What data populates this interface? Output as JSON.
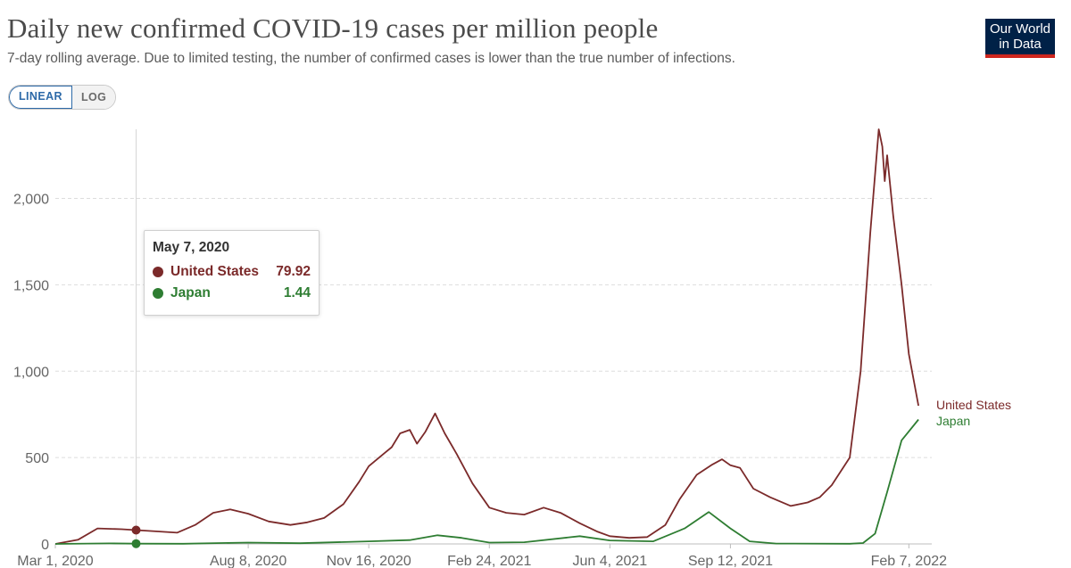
{
  "header": {
    "title": "Daily new confirmed COVID-19 cases per million people",
    "subtitle": "7-day rolling average. Due to limited testing, the number of confirmed cases is lower than the true number of infections.",
    "logo_line1": "Our World",
    "logo_line2": "in Data"
  },
  "scale_toggle": {
    "linear": "LINEAR",
    "log": "LOG",
    "selected": "LINEAR"
  },
  "tooltip": {
    "date": "May 7, 2020",
    "rows": [
      {
        "name": "United States",
        "value": "79.92",
        "color": "#7b2a2a"
      },
      {
        "name": "Japan",
        "value": "1.44",
        "color": "#2e7d32"
      }
    ]
  },
  "chart_data": {
    "type": "line",
    "title": "Daily new confirmed COVID-19 cases per million people",
    "xlabel": "",
    "ylabel": "",
    "x_ticks": [
      "Mar 1, 2020",
      "Aug 8, 2020",
      "Nov 16, 2020",
      "Feb 24, 2021",
      "Jun 4, 2021",
      "Sep 12, 2021",
      "Feb 7, 2022"
    ],
    "x_tick_dates": [
      "2020-03-01",
      "2020-08-08",
      "2020-11-16",
      "2021-02-24",
      "2021-06-04",
      "2021-09-12",
      "2022-02-07"
    ],
    "x_range": [
      "2020-03-01",
      "2022-02-26"
    ],
    "y_ticks": [
      0,
      500,
      1000,
      1500,
      2000
    ],
    "y_tick_labels": [
      "0",
      "500",
      "1,000",
      "1,500",
      "2,000"
    ],
    "ylim": [
      0,
      2400
    ],
    "grid": "horizontal dashed",
    "hover_date": "2020-05-07",
    "series": [
      {
        "name": "United States",
        "color": "#7b2a2a",
        "points": [
          [
            "2020-03-01",
            0
          ],
          [
            "2020-03-20",
            25
          ],
          [
            "2020-04-05",
            90
          ],
          [
            "2020-04-25",
            85
          ],
          [
            "2020-05-07",
            80
          ],
          [
            "2020-05-25",
            72
          ],
          [
            "2020-06-10",
            65
          ],
          [
            "2020-06-25",
            110
          ],
          [
            "2020-07-10",
            180
          ],
          [
            "2020-07-24",
            200
          ],
          [
            "2020-08-08",
            175
          ],
          [
            "2020-08-25",
            130
          ],
          [
            "2020-09-12",
            110
          ],
          [
            "2020-09-26",
            125
          ],
          [
            "2020-10-10",
            150
          ],
          [
            "2020-10-26",
            230
          ],
          [
            "2020-11-08",
            360
          ],
          [
            "2020-11-16",
            450
          ],
          [
            "2020-11-28",
            520
          ],
          [
            "2020-12-05",
            560
          ],
          [
            "2020-12-12",
            640
          ],
          [
            "2020-12-20",
            660
          ],
          [
            "2020-12-26",
            580
          ],
          [
            "2021-01-02",
            650
          ],
          [
            "2021-01-10",
            755
          ],
          [
            "2021-01-18",
            640
          ],
          [
            "2021-01-28",
            520
          ],
          [
            "2021-02-10",
            350
          ],
          [
            "2021-02-24",
            210
          ],
          [
            "2021-03-10",
            180
          ],
          [
            "2021-03-25",
            170
          ],
          [
            "2021-04-10",
            210
          ],
          [
            "2021-04-24",
            180
          ],
          [
            "2021-05-10",
            120
          ],
          [
            "2021-05-25",
            70
          ],
          [
            "2021-06-04",
            45
          ],
          [
            "2021-06-20",
            35
          ],
          [
            "2021-07-05",
            40
          ],
          [
            "2021-07-20",
            110
          ],
          [
            "2021-08-01",
            260
          ],
          [
            "2021-08-15",
            400
          ],
          [
            "2021-08-28",
            460
          ],
          [
            "2021-09-05",
            490
          ],
          [
            "2021-09-12",
            455
          ],
          [
            "2021-09-20",
            440
          ],
          [
            "2021-10-01",
            320
          ],
          [
            "2021-10-15",
            270
          ],
          [
            "2021-11-01",
            220
          ],
          [
            "2021-11-15",
            240
          ],
          [
            "2021-11-25",
            270
          ],
          [
            "2021-12-05",
            340
          ],
          [
            "2021-12-20",
            500
          ],
          [
            "2021-12-29",
            1000
          ],
          [
            "2022-01-06",
            1800
          ],
          [
            "2022-01-13",
            2400
          ],
          [
            "2022-01-16",
            2300
          ],
          [
            "2022-01-18",
            2100
          ],
          [
            "2022-01-20",
            2250
          ],
          [
            "2022-01-25",
            1900
          ],
          [
            "2022-02-01",
            1500
          ],
          [
            "2022-02-07",
            1100
          ],
          [
            "2022-02-15",
            800
          ]
        ]
      },
      {
        "name": "Japan",
        "color": "#2e7d32",
        "points": [
          [
            "2020-03-01",
            0
          ],
          [
            "2020-04-15",
            3
          ],
          [
            "2020-05-07",
            1.44
          ],
          [
            "2020-06-15",
            1
          ],
          [
            "2020-08-08",
            8
          ],
          [
            "2020-09-20",
            4
          ],
          [
            "2020-11-16",
            15
          ],
          [
            "2020-12-20",
            22
          ],
          [
            "2021-01-12",
            50
          ],
          [
            "2021-02-01",
            35
          ],
          [
            "2021-02-24",
            8
          ],
          [
            "2021-03-25",
            10
          ],
          [
            "2021-05-10",
            45
          ],
          [
            "2021-06-04",
            20
          ],
          [
            "2021-07-10",
            15
          ],
          [
            "2021-08-05",
            90
          ],
          [
            "2021-08-25",
            185
          ],
          [
            "2021-09-12",
            90
          ],
          [
            "2021-09-28",
            15
          ],
          [
            "2021-10-20",
            2
          ],
          [
            "2021-12-20",
            1
          ],
          [
            "2021-12-31",
            5
          ],
          [
            "2022-01-10",
            60
          ],
          [
            "2022-01-20",
            300
          ],
          [
            "2022-02-01",
            600
          ],
          [
            "2022-02-15",
            720
          ]
        ]
      }
    ]
  }
}
